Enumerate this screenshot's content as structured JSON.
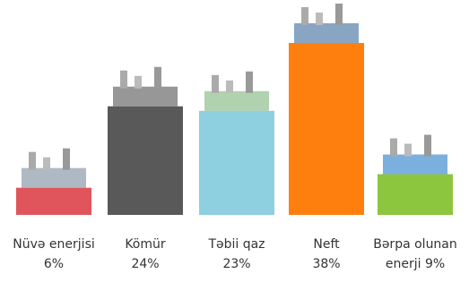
{
  "chart_data": {
    "type": "bar",
    "categories": [
      "Nüvə enerjisi",
      "Kömür",
      "Təbii qaz",
      "Neft",
      "Bərpa olunan enerji"
    ],
    "values": [
      6,
      24,
      23,
      38,
      9
    ],
    "value_labels": [
      "6%",
      "24%",
      "23%",
      "38%",
      "9%"
    ],
    "colors": [
      "#e0555b",
      "#595959",
      "#8ecfe0",
      "#ff7f0e",
      "#8cc63f"
    ]
  }
}
